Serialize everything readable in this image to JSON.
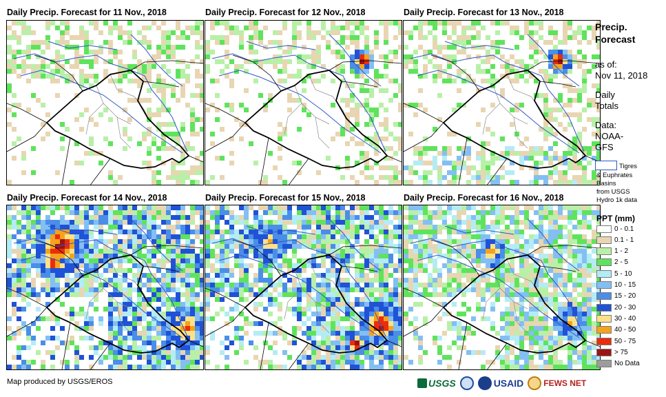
{
  "panels": [
    {
      "title": "Daily Precip. Forecast for 11 Nov., 2018",
      "seed": 11,
      "intensity": 1
    },
    {
      "title": "Daily Precip. Forecast for 12 Nov., 2018",
      "seed": 12,
      "intensity": 1
    },
    {
      "title": "Daily Precip. Forecast for 13 Nov., 2018",
      "seed": 13,
      "intensity": 1
    },
    {
      "title": "Daily Precip. Forecast for 14 Nov., 2018",
      "seed": 14,
      "intensity": 3
    },
    {
      "title": "Daily Precip. Forecast for 15 Nov., 2018",
      "seed": 15,
      "intensity": 3
    },
    {
      "title": "Daily Precip. Forecast for 16 Nov., 2018",
      "seed": 16,
      "intensity": 2
    }
  ],
  "sidebar": {
    "title_line1": "Precip.",
    "title_line2": "Forecast",
    "as_of_label": "as of:",
    "as_of_date": "Nov 11, 2018",
    "totals_line1": "Daily",
    "totals_line2": "Totals",
    "data_line1": "Data:",
    "data_line2": "NOAA-",
    "data_line3": "GFS",
    "basin_line1": "Tigres",
    "basin_line2": "& Euphrates",
    "basin_line3": "Basins",
    "basin_line4": "from USGS",
    "basin_line5": "Hydro 1k data"
  },
  "legend": {
    "title": "PPT (mm)",
    "items": [
      {
        "label": "0 - 0.1",
        "color": "#ffffff"
      },
      {
        "label": "0.1 - 1",
        "color": "#e8d6b2"
      },
      {
        "label": "1 - 2",
        "color": "#b8f0a8"
      },
      {
        "label": "2 - 5",
        "color": "#5fe35c"
      },
      {
        "label": "5 - 10",
        "color": "#b4ecf5"
      },
      {
        "label": "10 - 15",
        "color": "#83bff2"
      },
      {
        "label": "15 - 20",
        "color": "#4a8ee8"
      },
      {
        "label": "20 - 30",
        "color": "#1f52d6"
      },
      {
        "label": "30 - 40",
        "color": "#fbe28a"
      },
      {
        "label": "40 - 50",
        "color": "#f6a21b"
      },
      {
        "label": "50 - 75",
        "color": "#ea2d0d"
      },
      {
        "label": "> 75",
        "color": "#9c1414"
      },
      {
        "label": "No Data",
        "color": "#9c9c9c"
      }
    ]
  },
  "footer": {
    "credit": "Map produced by USGS/EROS",
    "logo_usgs": "USGS",
    "logo_usaid": "USAID",
    "logo_fews": "FEWS NET"
  }
}
